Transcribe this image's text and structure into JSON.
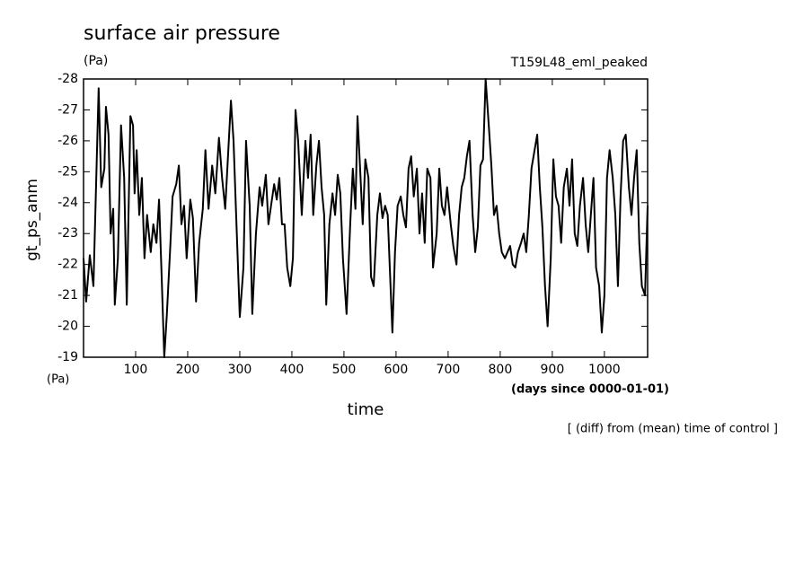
{
  "chart_data": {
    "type": "line",
    "title": "surface air pressure",
    "unit_top": "(Pa)",
    "experiment": "T159L48_eml_peaked",
    "ylabel": "gt_ps_anm",
    "unit_bottom": "(Pa)",
    "xlabel": "time",
    "xunit": "(days since 0000-01-01)",
    "note": "[ (diff) from (mean) time of control ]",
    "color": "#000000",
    "xlim": [
      0,
      1083
    ],
    "ylim": [
      -19,
      -28
    ],
    "xticks": [
      100,
      200,
      300,
      400,
      500,
      600,
      700,
      800,
      900,
      1000
    ],
    "yticks": [
      -28,
      -27,
      -26,
      -25,
      -24,
      -23,
      -22,
      -21,
      -20,
      -19
    ],
    "x": [
      0,
      5,
      12,
      19,
      26,
      29,
      34,
      40,
      43,
      48,
      52,
      57,
      60,
      66,
      72,
      78,
      83,
      90,
      95,
      98,
      102,
      107,
      112,
      117,
      122,
      129,
      134,
      140,
      145,
      150,
      155,
      160,
      166,
      171,
      178,
      183,
      188,
      193,
      198,
      205,
      210,
      216,
      222,
      229,
      234,
      240,
      247,
      253,
      260,
      266,
      272,
      278,
      283,
      288,
      293,
      300,
      307,
      312,
      319,
      324,
      331,
      338,
      343,
      350,
      355,
      360,
      366,
      371,
      376,
      381,
      386,
      391,
      397,
      402,
      407,
      412,
      419,
      426,
      431,
      436,
      441,
      447,
      452,
      457,
      462,
      466,
      472,
      478,
      483,
      488,
      493,
      498,
      505,
      512,
      517,
      522,
      526,
      531,
      536,
      541,
      547,
      552,
      557,
      564,
      569,
      574,
      579,
      584,
      588,
      593,
      598,
      603,
      609,
      614,
      619,
      624,
      629,
      634,
      640,
      645,
      650,
      655,
      660,
      666,
      671,
      678,
      683,
      688,
      693,
      698,
      705,
      710,
      716,
      721,
      726,
      731,
      736,
      741,
      747,
      752,
      757,
      762,
      767,
      772,
      778,
      783,
      788,
      793,
      798,
      803,
      809,
      814,
      819,
      824,
      829,
      834,
      840,
      845,
      850,
      855,
      860,
      866,
      871,
      876,
      881,
      886,
      891,
      897,
      902,
      907,
      912,
      917,
      922,
      928,
      933,
      938,
      943,
      948,
      953,
      959,
      964,
      969,
      974,
      979,
      984,
      990,
      995,
      1000,
      1005,
      1010,
      1016,
      1021,
      1026,
      1031,
      1036,
      1041,
      1047,
      1052,
      1057,
      1062,
      1067,
      1072,
      1078,
      1083
    ],
    "values": [
      -22.2,
      -20.8,
      -22.3,
      -21.3,
      -25.8,
      -27.7,
      -24.5,
      -25.1,
      -27.1,
      -26.2,
      -23.0,
      -23.8,
      -20.7,
      -22.2,
      -26.5,
      -24.8,
      -20.7,
      -26.8,
      -26.5,
      -24.3,
      -25.7,
      -23.6,
      -24.8,
      -22.2,
      -23.6,
      -22.4,
      -23.3,
      -22.7,
      -24.1,
      -21.6,
      -19.0,
      -20.4,
      -22.4,
      -24.2,
      -24.6,
      -25.2,
      -23.3,
      -23.9,
      -22.2,
      -24.1,
      -23.5,
      -20.8,
      -22.7,
      -23.8,
      -25.7,
      -23.8,
      -25.2,
      -24.3,
      -26.1,
      -24.8,
      -23.8,
      -25.7,
      -27.3,
      -26.0,
      -23.6,
      -20.3,
      -21.9,
      -26.0,
      -23.9,
      -20.4,
      -23.0,
      -24.5,
      -23.9,
      -24.9,
      -23.3,
      -23.9,
      -24.6,
      -24.1,
      -24.8,
      -23.3,
      -23.3,
      -21.9,
      -21.3,
      -22.2,
      -27.0,
      -26.0,
      -23.6,
      -26.0,
      -24.8,
      -26.2,
      -23.6,
      -25.2,
      -26.0,
      -24.5,
      -23.6,
      -20.7,
      -23.3,
      -24.3,
      -23.6,
      -24.9,
      -24.3,
      -22.2,
      -20.4,
      -23.3,
      -25.1,
      -23.8,
      -26.8,
      -25.1,
      -23.3,
      -25.4,
      -24.8,
      -21.6,
      -21.3,
      -23.6,
      -24.3,
      -23.5,
      -23.9,
      -23.6,
      -21.9,
      -19.8,
      -22.4,
      -23.9,
      -24.2,
      -23.6,
      -23.2,
      -25.1,
      -25.5,
      -24.2,
      -25.1,
      -23.0,
      -24.3,
      -22.7,
      -25.1,
      -24.8,
      -21.9,
      -23.0,
      -25.1,
      -23.9,
      -23.6,
      -24.5,
      -23.3,
      -22.6,
      -22.0,
      -23.6,
      -24.5,
      -24.8,
      -25.5,
      -26.0,
      -23.6,
      -22.4,
      -23.2,
      -25.2,
      -25.4,
      -28.0,
      -26.5,
      -25.2,
      -23.6,
      -23.9,
      -23.0,
      -22.4,
      -22.2,
      -22.4,
      -22.6,
      -22.0,
      -21.9,
      -22.4,
      -22.7,
      -23.0,
      -22.4,
      -23.6,
      -25.1,
      -25.7,
      -26.2,
      -24.5,
      -23.2,
      -21.3,
      -20.0,
      -22.2,
      -25.4,
      -24.2,
      -23.9,
      -22.7,
      -24.5,
      -25.1,
      -23.9,
      -25.4,
      -23.0,
      -22.6,
      -23.9,
      -24.8,
      -23.3,
      -22.4,
      -23.6,
      -24.8,
      -21.9,
      -21.3,
      -19.8,
      -21.0,
      -24.8,
      -25.7,
      -24.8,
      -23.6,
      -21.3,
      -24.2,
      -26.0,
      -26.2,
      -24.5,
      -23.6,
      -24.8,
      -25.7,
      -22.7,
      -21.3,
      -21.0,
      -23.9
    ]
  }
}
